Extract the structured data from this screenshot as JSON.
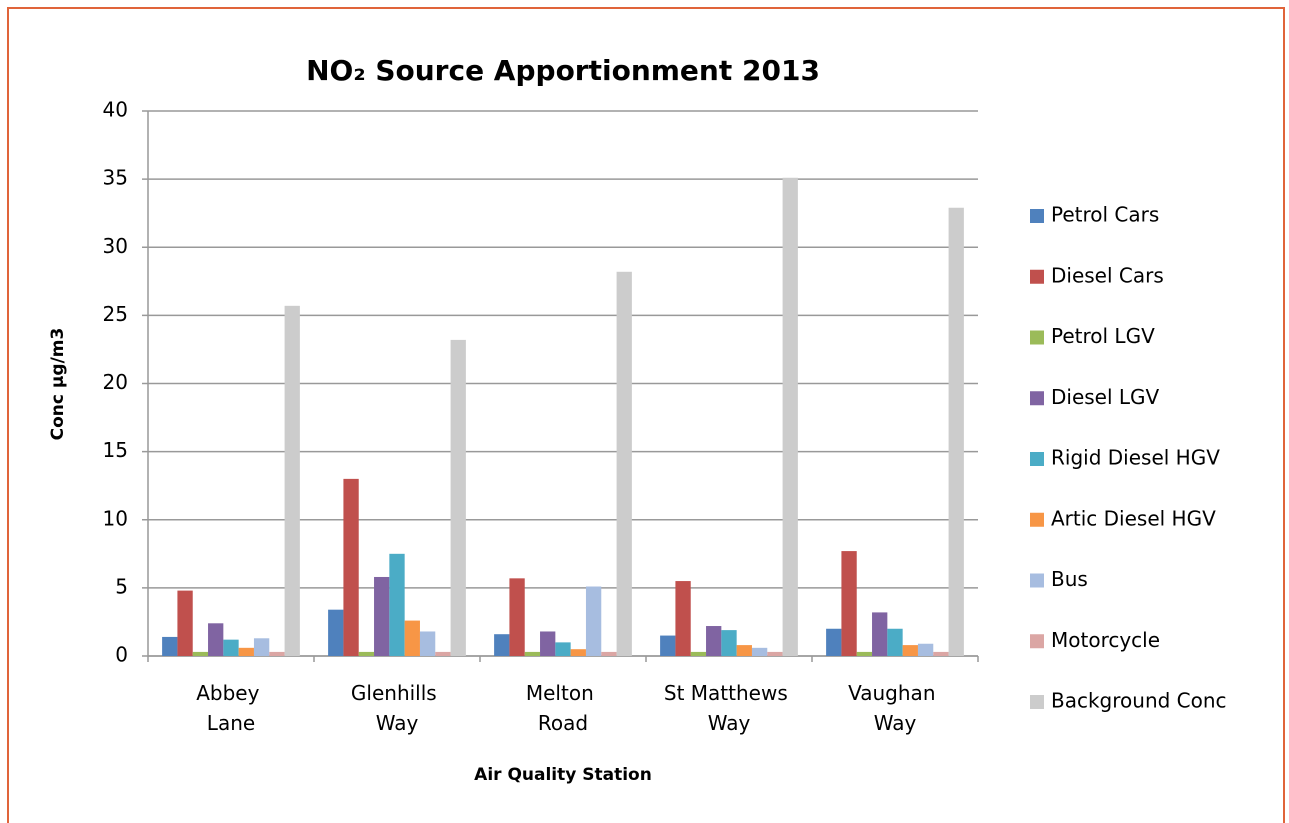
{
  "chart_data": {
    "type": "bar",
    "title": "NO₂ Source Apportionment 2013",
    "x_label": "Air Quality Station",
    "y_label": "Conc µg/m3",
    "categories": [
      "Abbey Lane",
      "Glenhills Way",
      "Melton Road",
      "St Matthews Way",
      "Vaughan Way"
    ],
    "series": [
      {
        "name": "Petrol Cars",
        "color": "#4f81bd",
        "values": [
          1.4,
          3.4,
          1.6,
          1.5,
          2.0
        ]
      },
      {
        "name": "Diesel Cars",
        "color": "#c0504d",
        "values": [
          4.8,
          13.0,
          5.7,
          5.5,
          7.7
        ]
      },
      {
        "name": "Petrol LGV",
        "color": "#9bbb59",
        "values": [
          0.3,
          0.3,
          0.3,
          0.3,
          0.3
        ]
      },
      {
        "name": "Diesel LGV",
        "color": "#8064a2",
        "values": [
          2.4,
          5.8,
          1.8,
          2.2,
          3.2
        ]
      },
      {
        "name": "Rigid Diesel HGV",
        "color": "#4bacc6",
        "values": [
          1.2,
          7.5,
          1.0,
          1.9,
          2.0
        ]
      },
      {
        "name": "Artic Diesel HGV",
        "color": "#f79646",
        "values": [
          0.6,
          2.6,
          0.5,
          0.8,
          0.8
        ]
      },
      {
        "name": "Bus",
        "color": "#a7bde0",
        "values": [
          1.3,
          1.8,
          5.1,
          0.6,
          0.9
        ]
      },
      {
        "name": "Motorcycle",
        "color": "#dba6a4",
        "values": [
          0.3,
          0.3,
          0.3,
          0.3,
          0.3
        ]
      },
      {
        "name": "Background Conc",
        "color": "#cccccc",
        "values": [
          25.7,
          23.2,
          28.2,
          35.1,
          32.9
        ]
      }
    ],
    "ylim": [
      0,
      40
    ],
    "yticks": [
      0,
      5,
      10,
      15,
      20,
      25,
      30,
      35,
      40
    ],
    "grid": true,
    "legend": "right"
  }
}
